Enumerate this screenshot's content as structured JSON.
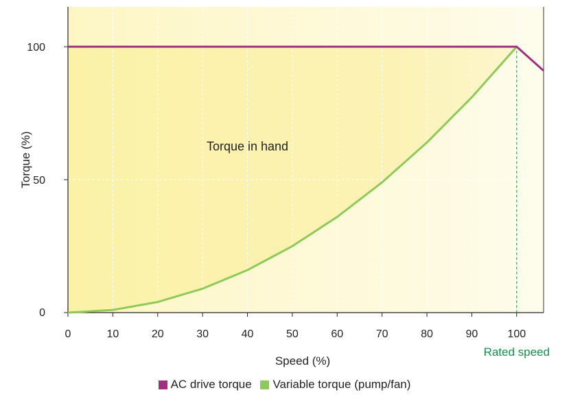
{
  "chart_data": {
    "type": "line",
    "xlabel": "Speed (%)",
    "ylabel": "Torque (%)",
    "xlim": [
      0,
      106
    ],
    "ylim": [
      0,
      115
    ],
    "x_ticks": [
      "0",
      "10",
      "20",
      "30",
      "40",
      "50",
      "60",
      "70",
      "80",
      "90",
      "100"
    ],
    "y_ticks": [
      "0",
      "50",
      "100"
    ],
    "grid": true,
    "legend_position": "bottom",
    "series": [
      {
        "name": "AC drive torque",
        "color": "#a0307f",
        "x": [
          0,
          100,
          106
        ],
        "y": [
          100,
          100,
          91
        ]
      },
      {
        "name": "Variable torque (pump/fan)",
        "color": "#8fc95a",
        "x": [
          0,
          10,
          20,
          30,
          40,
          50,
          60,
          70,
          80,
          90,
          100
        ],
        "y": [
          0,
          1,
          4,
          9,
          16,
          25,
          36,
          49,
          64,
          81,
          100
        ]
      }
    ],
    "annotations": [
      {
        "text": "Torque in hand",
        "x": 40,
        "y": 61
      },
      {
        "text": "Rated speed",
        "x": 100,
        "color": "#1e8a4e"
      }
    ]
  }
}
